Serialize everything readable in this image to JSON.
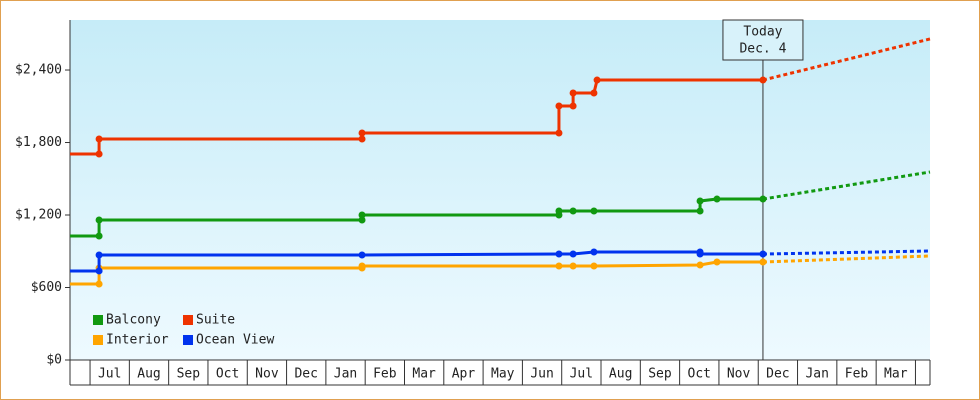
{
  "chart_data": {
    "type": "step-line",
    "xlim": [
      -0.51,
      21.37
    ],
    "ylim": [
      0,
      2814
    ],
    "yticks": [
      {
        "value": 0,
        "label": "$0"
      },
      {
        "value": 600,
        "label": "$600"
      },
      {
        "value": 1200,
        "label": "$1,200"
      },
      {
        "value": 1800,
        "label": "$1,800"
      },
      {
        "value": 2400,
        "label": "$2,400"
      }
    ],
    "categories": [
      "Jul",
      "Aug",
      "Sep",
      "Oct",
      "Nov",
      "Dec",
      "Jan",
      "Feb",
      "Mar",
      "Apr",
      "May",
      "Jun",
      "Jul",
      "Aug",
      "Sep",
      "Oct",
      "Nov",
      "Dec",
      "Jan",
      "Feb",
      "Mar"
    ],
    "today": {
      "x": 17.12,
      "label": [
        "Today",
        "Dec. 4"
      ]
    },
    "series": [
      {
        "name": "Balcony",
        "color": "#119911",
        "x": [
          -0.51,
          0.23,
          0.23,
          6.92,
          6.92,
          11.93,
          11.93,
          12.29,
          12.82,
          15.52,
          15.52,
          15.95,
          17.12
        ],
        "values": [
          1026,
          1026,
          1159,
          1159,
          1200,
          1200,
          1233,
          1233,
          1233,
          1233,
          1316,
          1332,
          1332
        ],
        "forecast": {
          "x": [
            17.12,
            21.37
          ],
          "values": [
            1332,
            1556
          ]
        }
      },
      {
        "name": "Suite",
        "color": "#ee3300",
        "x": [
          -0.51,
          0.23,
          0.23,
          6.92,
          6.92,
          11.93,
          11.93,
          12.29,
          12.29,
          12.82,
          12.9,
          17.12
        ],
        "values": [
          1705,
          1705,
          1829,
          1829,
          1879,
          1879,
          2102,
          2102,
          2210,
          2210,
          2317,
          2317
        ],
        "forecast": {
          "x": [
            17.12,
            21.37
          ],
          "values": [
            2317,
            2657
          ]
        }
      },
      {
        "name": "Interior",
        "color": "#ffa500",
        "x": [
          -0.51,
          0.23,
          0.23,
          6.92,
          6.92,
          11.93,
          12.29,
          12.82,
          15.52,
          15.95,
          17.12
        ],
        "values": [
          629,
          629,
          761,
          761,
          778,
          778,
          778,
          778,
          786,
          811,
          811
        ],
        "forecast": {
          "x": [
            17.12,
            21.37
          ],
          "values": [
            811,
            861
          ]
        }
      },
      {
        "name": "Ocean View",
        "color": "#0033ee",
        "x": [
          -0.51,
          0.23,
          0.23,
          6.92,
          11.93,
          12.29,
          12.82,
          15.52,
          15.52,
          17.12
        ],
        "values": [
          737,
          737,
          869,
          869,
          877,
          877,
          894,
          894,
          877,
          877
        ],
        "forecast": {
          "x": [
            17.12,
            21.37
          ],
          "values": [
            877,
            902
          ]
        }
      }
    ]
  }
}
